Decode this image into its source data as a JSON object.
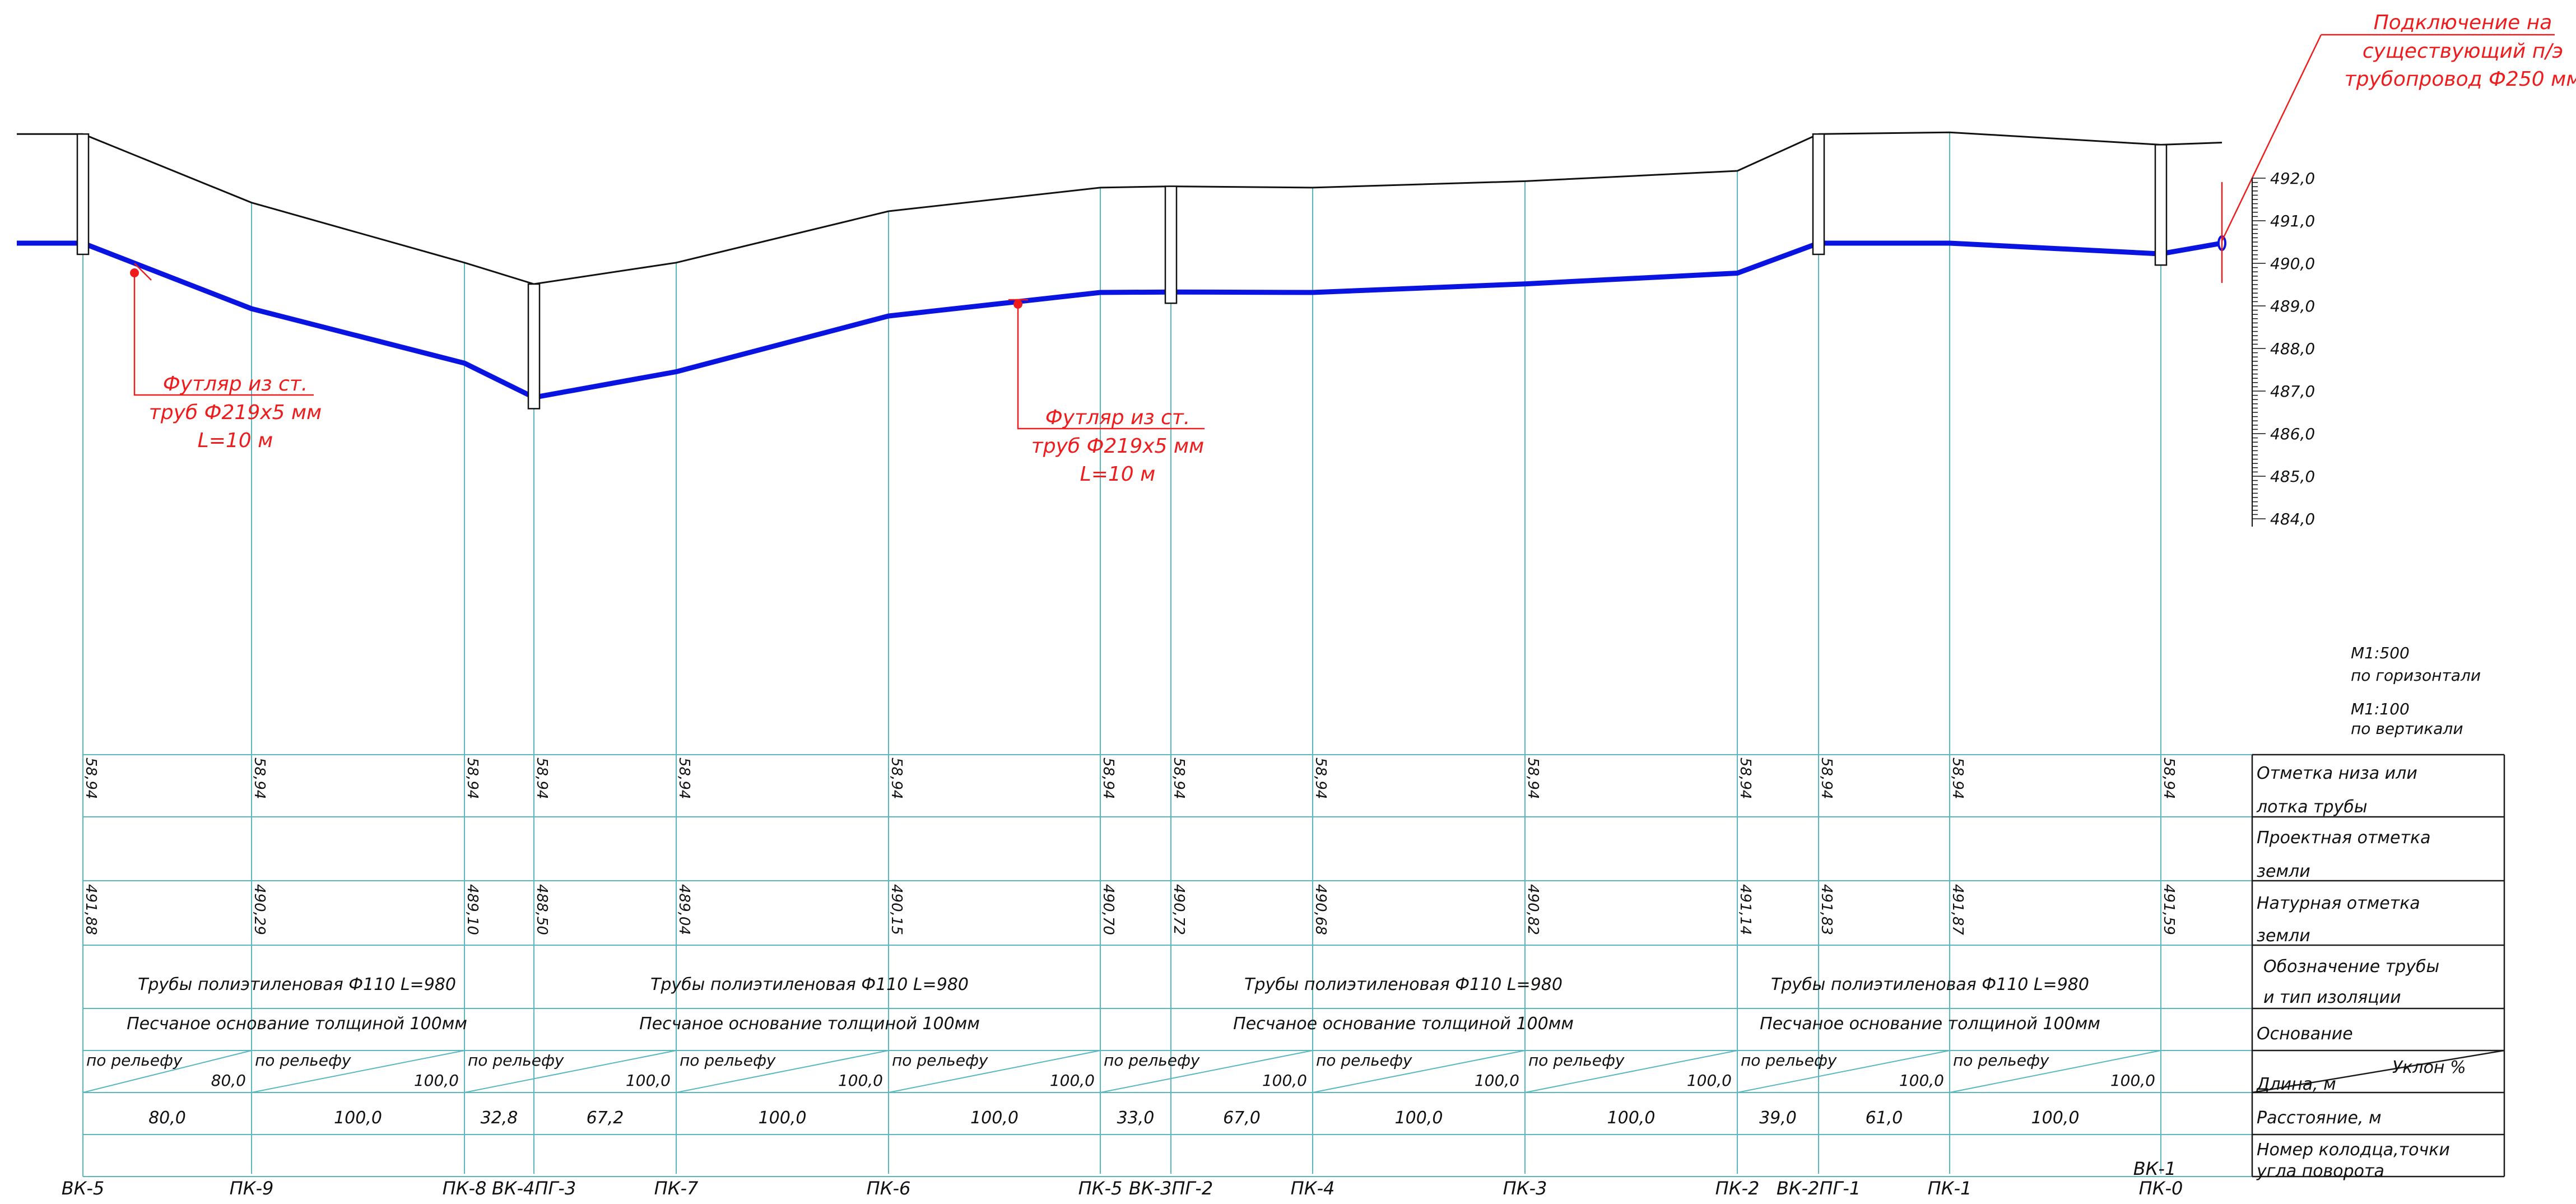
{
  "callout_top": {
    "lines": [
      "Подключение на",
      "существующий п/э",
      "трубопровод Ф250 мм"
    ]
  },
  "casing_left": {
    "lines": [
      "Футляр из ст.",
      "труб Ф219х5 мм",
      "L=10 м"
    ]
  },
  "casing_mid": {
    "lines": [
      "Футляр из ст.",
      "труб Ф219х5 мм",
      "L=10 м"
    ]
  },
  "scale_ticks": [
    "492,0",
    "491,0",
    "490,0",
    "489,0",
    "488,0",
    "487,0",
    "486,0",
    "485,0",
    "484,0"
  ],
  "scale_note": {
    "h_scale": "М1:500",
    "h_label": "по горизонтали",
    "v_scale": "М1:100",
    "v_label": "по вертикали"
  },
  "row_labels": {
    "invert": [
      "Отметка низа или",
      "лотка трубы"
    ],
    "design": [
      "Проектная отметка",
      "земли"
    ],
    "natural": [
      "Натурная отметка",
      "земли"
    ],
    "pipe_type": [
      "Обозначение трубы",
      "и тип изоляции"
    ],
    "base": [
      "Основание"
    ],
    "length": "Длина,  м",
    "slope": "Уклон %",
    "distance": "Расстояние, м",
    "wells": [
      "Номер колодца,точки",
      "угла поворота"
    ]
  },
  "stations": [
    {
      "name": "ВК-5",
      "invert": "58,94",
      "natural": "491,88"
    },
    {
      "name": "ПК-9",
      "invert": "58,94",
      "natural": "490,29"
    },
    {
      "name": "ПК-8",
      "invert": "58,94",
      "natural": "489,10"
    },
    {
      "name": "ВК-4ПГ-3",
      "invert": "58,94",
      "natural": "488,50"
    },
    {
      "name": "ПК-7",
      "invert": "58,94",
      "natural": "489,04"
    },
    {
      "name": "ПК-6",
      "invert": "58,94",
      "natural": "490,15"
    },
    {
      "name": "ПК-5",
      "invert": "58,94",
      "natural": "490,70"
    },
    {
      "name": "ВК-3ПГ-2",
      "invert": "58,94",
      "natural": "490,72"
    },
    {
      "name": "ПК-4",
      "invert": "58,94",
      "natural": "490,68"
    },
    {
      "name": "ПК-3",
      "invert": "58,94",
      "natural": "490,82"
    },
    {
      "name": "ПК-2",
      "invert": "58,94",
      "natural": "491,14"
    },
    {
      "name": "ВК-2ПГ-1",
      "invert": "58,94",
      "natural": "491,83"
    },
    {
      "name": "ПК-1",
      "invert": "58,94",
      "natural": "491,87"
    },
    {
      "name": "ПК-0",
      "invert": "58,94",
      "natural": "491,59"
    }
  ],
  "end_label": "ВК-1",
  "pipe_type_text": [
    "Трубы полиэтиленовая Ф110 L=980",
    "Трубы полиэтиленовая Ф110 L=980",
    "Трубы полиэтиленовая Ф110 L=980",
    "Трубы полиэтиленовая Ф110 L=980"
  ],
  "base_text": [
    "Песчаное основание толщиной 100мм",
    "Песчаное основание толщиной 100мм",
    "Песчаное основание толщиной 100мм",
    "Песчаное основание толщиной 100мм"
  ],
  "segments": [
    {
      "slope": "по рельефу",
      "length": "80,0"
    },
    {
      "slope": "по рельефу",
      "length": "100,0"
    },
    {
      "slope": "по рельефу",
      "length": "100,0"
    },
    {
      "slope": "по рельефу",
      "length": "100,0"
    },
    {
      "slope": "по рельефу",
      "length": "100,0"
    },
    {
      "slope": "по рельефу",
      "length": "100,0"
    },
    {
      "slope": "по рельефу",
      "length": "100,0"
    },
    {
      "slope": "по рельефу",
      "length": "100,0"
    },
    {
      "slope": "по рельефу",
      "length": "100,0"
    },
    {
      "slope": "по рельефу",
      "length": "100,0"
    }
  ],
  "distances": [
    "80,0",
    "100,0",
    "32,8",
    "67,2",
    "100,0",
    "100,0",
    "33,0",
    "67,0",
    "100,0",
    "100,0",
    "39,0",
    "61,0",
    "100,0"
  ],
  "ground_elev": [
    492.0,
    492.0,
    490.4,
    489.0,
    488.5,
    489.0,
    490.2,
    490.75,
    490.78,
    490.75,
    490.9,
    491.14,
    492.0,
    492.04,
    491.75,
    491.8
  ],
  "pipe_elev": [
    490.5,
    490.5,
    488.97,
    487.7,
    486.9,
    487.5,
    488.8,
    489.35,
    489.36,
    489.35,
    489.55,
    489.8,
    490.5,
    490.5,
    490.25,
    490.5
  ],
  "colors": {
    "pipe": "#0a14e0",
    "annotation": "#ee1c1c",
    "grid": "#59b8bf",
    "frame": "#1a1a1a"
  }
}
